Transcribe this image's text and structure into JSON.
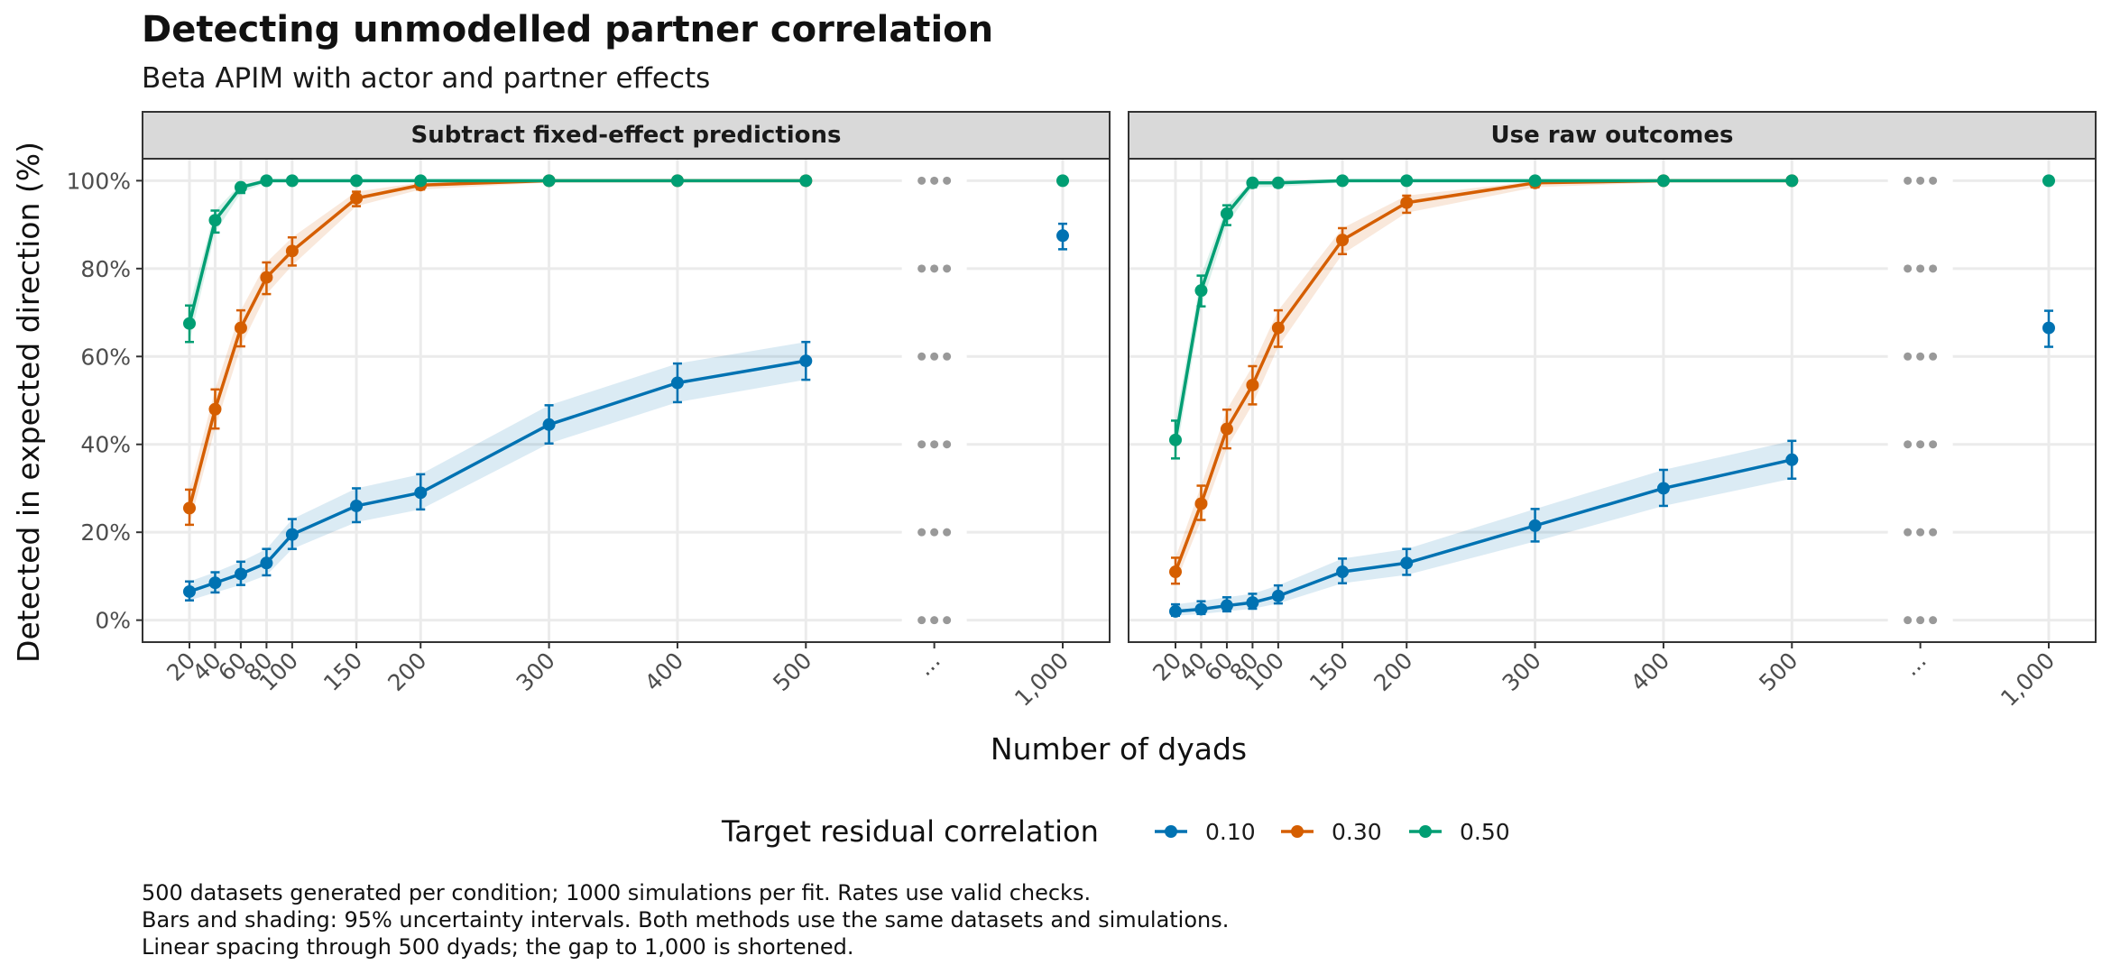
{
  "colors": {
    "series": [
      "#0072B2",
      "#D55E00",
      "#009E73"
    ],
    "grid": "#ebebeb",
    "strip_bg": "#d9d9d9",
    "panel_border": "#333333",
    "gap_marker": "#999999"
  },
  "chart_data": {
    "type": "line",
    "title": "Detecting unmodelled partner correlation",
    "subtitle": "Beta APIM with actor and partner effects",
    "xlabel": "Number of dyads",
    "ylabel": "Detected in expected direction (%)",
    "x_ticks": [
      "20",
      "40",
      "60",
      "80",
      "100",
      "150",
      "200",
      "300",
      "400",
      "500",
      "...",
      "1,000"
    ],
    "x_tick_values": [
      20,
      40,
      60,
      80,
      100,
      150,
      200,
      300,
      400,
      500,
      600,
      700
    ],
    "x_note": "Linear spacing through 500 dyads; the gap to 1,000 is shortened.",
    "y_ticks": [
      "0%",
      "20%",
      "40%",
      "60%",
      "80%",
      "100%"
    ],
    "y_tick_values": [
      0,
      20,
      40,
      60,
      80,
      100
    ],
    "ylim": [
      -5,
      105
    ],
    "grid": true,
    "legend": {
      "title": "Target residual correlation",
      "position": "bottom",
      "entries": [
        "0.10",
        "0.30",
        "0.50"
      ]
    },
    "caption": [
      "500 datasets generated per condition; 1000 simulations per fit. Rates use valid checks.",
      "Bars and shading: 95% uncertainty intervals. Both methods use the same datasets and simulations.",
      "Linear spacing through 500 dyads; the gap to 1,000 is shortened."
    ],
    "panels": [
      {
        "label": "Subtract fixed-effect predictions",
        "series": [
          {
            "name": "0.10",
            "x": [
              20,
              40,
              60,
              80,
              100,
              150,
              200,
              300,
              400,
              500
            ],
            "y": [
              6.5,
              8.5,
              10.5,
              13,
              19.5,
              26,
              29,
              44.5,
              54,
              59
            ],
            "lower": [
              4.5,
              6.3,
              8,
              10.2,
              16.2,
              22.3,
              25.2,
              40.2,
              49.6,
              54.7
            ],
            "upper": [
              8.8,
              10.9,
              13.3,
              16.2,
              23,
              30,
              33.2,
              48.9,
              58.4,
              63.3
            ],
            "point_1000": 87.5,
            "lower_1000": 84.4,
            "upper_1000": 90.2
          },
          {
            "name": "0.30",
            "x": [
              20,
              40,
              60,
              80,
              100,
              150,
              200,
              300,
              400,
              500
            ],
            "y": [
              25.5,
              48,
              66.5,
              78,
              84,
              96,
              99,
              100,
              100,
              100
            ],
            "lower": [
              21.7,
              43.6,
              62.3,
              74.2,
              80.7,
              94.2,
              98,
              99.6,
              99.7,
              99.7
            ],
            "upper": [
              29.7,
              52.5,
              70.5,
              81.4,
              87.1,
              97.5,
              99.6,
              100,
              100,
              100
            ]
          },
          {
            "name": "0.50",
            "x": [
              20,
              40,
              60,
              80,
              100,
              150,
              200,
              300,
              400,
              500
            ],
            "y": [
              67.5,
              91,
              98.5,
              100,
              100,
              100,
              100,
              100,
              100,
              100
            ],
            "lower": [
              63.3,
              88.2,
              97.2,
              99.6,
              99.6,
              99.6,
              99.7,
              99.7,
              99.7,
              99.7
            ],
            "upper": [
              71.6,
              93.2,
              99.3,
              100,
              100,
              100,
              100,
              100,
              100,
              100
            ],
            "point_1000": 100,
            "lower_1000": 99.7,
            "upper_1000": 100
          }
        ]
      },
      {
        "label": "Use raw outcomes",
        "series": [
          {
            "name": "0.10",
            "x": [
              20,
              40,
              60,
              80,
              100,
              150,
              200,
              300,
              400,
              500
            ],
            "y": [
              2,
              2.5,
              3.3,
              4,
              5.5,
              11,
              13,
              21.5,
              30,
              36.5
            ],
            "lower": [
              1,
              1.4,
              2,
              2.6,
              3.8,
              8.4,
              10.3,
              17.9,
              26,
              32.2
            ],
            "upper": [
              3.6,
              4.3,
              5.2,
              6,
              7.9,
              14,
              16.2,
              25.3,
              34.2,
              40.8
            ],
            "point_1000": 66.5,
            "lower_1000": 62.2,
            "upper_1000": 70.4
          },
          {
            "name": "0.30",
            "x": [
              20,
              40,
              60,
              80,
              100,
              150,
              200,
              300,
              400,
              500
            ],
            "y": [
              11,
              26.5,
              43.5,
              53.5,
              66.5,
              86.5,
              95,
              99.5,
              100,
              100
            ],
            "lower": [
              8.3,
              22.8,
              39.1,
              49.1,
              62.2,
              83.3,
              92.7,
              98.5,
              99.6,
              99.7
            ],
            "upper": [
              14.2,
              30.6,
              47.9,
              57.8,
              70.5,
              89.2,
              96.6,
              99.9,
              100,
              100
            ]
          },
          {
            "name": "0.50",
            "x": [
              20,
              40,
              60,
              80,
              100,
              150,
              200,
              300,
              400,
              500
            ],
            "y": [
              41,
              75,
              92.5,
              99.5,
              99.5,
              100,
              100,
              100,
              100,
              100
            ],
            "lower": [
              36.8,
              71.4,
              89.9,
              98.5,
              98.6,
              99.6,
              99.7,
              99.7,
              99.7,
              99.7
            ],
            "upper": [
              45.4,
              78.4,
              94.4,
              99.9,
              99.9,
              100,
              100,
              100,
              100,
              100
            ],
            "point_1000": 100,
            "lower_1000": 99.7,
            "upper_1000": 100
          }
        ]
      }
    ]
  }
}
